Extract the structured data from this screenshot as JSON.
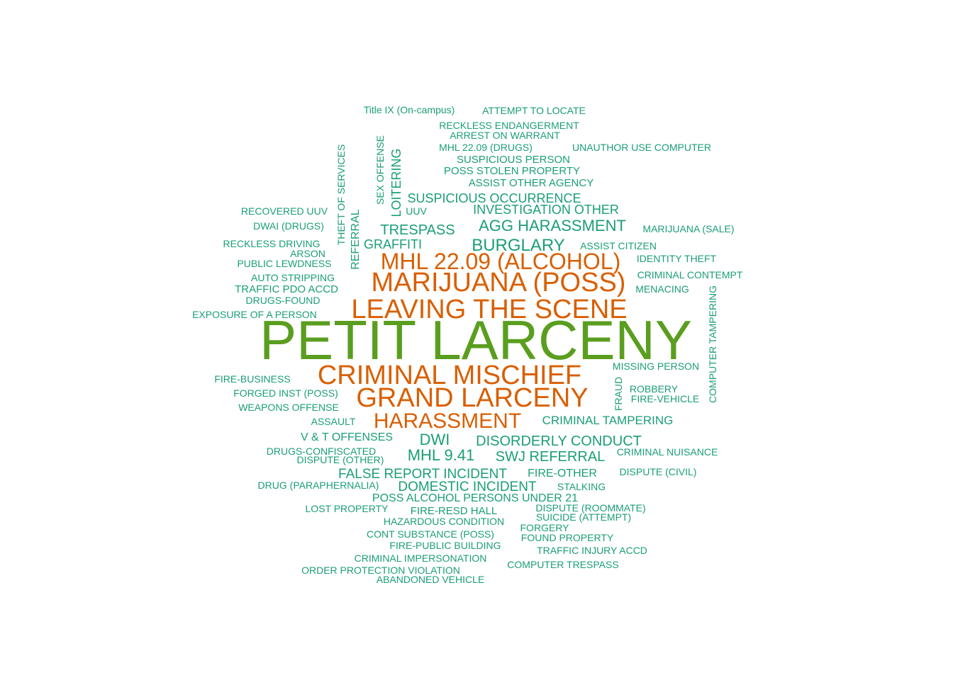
{
  "palette": {
    "green": "#5a9e1f",
    "orange": "#d95f02",
    "teal": "#1b9e77"
  },
  "words": [
    {
      "text": "PETIT LARCENY",
      "color": "green"
    },
    {
      "text": "CRIMINAL MISCHIEF",
      "color": "orange"
    },
    {
      "text": "GRAND LARCENY",
      "color": "orange"
    },
    {
      "text": "LEAVING THE SCENE",
      "color": "orange"
    },
    {
      "text": "MARIJUANA (POSS)",
      "color": "orange"
    },
    {
      "text": "MHL 22.09 (ALCOHOL)",
      "color": "orange"
    },
    {
      "text": "HARASSMENT",
      "color": "orange"
    },
    {
      "text": "BURGLARY",
      "color": "teal"
    },
    {
      "text": "DWI",
      "color": "teal"
    },
    {
      "text": "AGG HARASSMENT",
      "color": "teal"
    },
    {
      "text": "MHL 9.41",
      "color": "teal"
    },
    {
      "text": "DISORDERLY CONDUCT",
      "color": "teal"
    },
    {
      "text": "SWJ REFERRAL",
      "color": "teal"
    },
    {
      "text": "FALSE REPORT INCIDENT",
      "color": "teal"
    },
    {
      "text": "DOMESTIC INCIDENT",
      "color": "teal"
    },
    {
      "text": "TRESPASS",
      "color": "teal"
    },
    {
      "text": "CRIMINAL TAMPERING",
      "color": "teal"
    },
    {
      "text": "INVESTIGATION OTHER",
      "color": "teal"
    },
    {
      "text": "SUSPICIOUS OCCURRENCE",
      "color": "teal"
    },
    {
      "text": "GRAFFITI",
      "color": "teal"
    },
    {
      "text": "POSS ALCOHOL PERSONS UNDER 21",
      "color": "teal"
    },
    {
      "text": "V & T OFFENSES",
      "color": "teal"
    },
    {
      "text": "LOITERING",
      "color": "teal"
    },
    {
      "text": "REFERRAL",
      "color": "teal"
    },
    {
      "text": "FIRE-OTHER",
      "color": "teal"
    },
    {
      "text": "SUSPICIOUS PERSON",
      "color": "teal"
    },
    {
      "text": "POSS STOLEN PROPERTY",
      "color": "teal"
    },
    {
      "text": "ASSIST OTHER AGENCY",
      "color": "teal"
    },
    {
      "text": "TRAFFIC PDO ACCD",
      "color": "teal"
    },
    {
      "text": "FIRE-RESD HALL",
      "color": "teal"
    },
    {
      "text": "Title IX (On-campus)",
      "color": "teal"
    },
    {
      "text": "ATTEMPT TO LOCATE",
      "color": "teal"
    },
    {
      "text": "RECKLESS ENDANGERMENT",
      "color": "teal"
    },
    {
      "text": "ARREST ON WARRANT",
      "color": "teal"
    },
    {
      "text": "MHL 22.09 (DRUGS)",
      "color": "teal"
    },
    {
      "text": "UNAUTHOR USE COMPUTER",
      "color": "teal"
    },
    {
      "text": "THEFT OF SERVICES",
      "color": "teal"
    },
    {
      "text": "SEX OFFENSE",
      "color": "teal"
    },
    {
      "text": "UUV",
      "color": "teal"
    },
    {
      "text": "RECOVERED UUV",
      "color": "teal"
    },
    {
      "text": "DWAI (DRUGS)",
      "color": "teal"
    },
    {
      "text": "MARIJUANA (SALE)",
      "color": "teal"
    },
    {
      "text": "RECKLESS DRIVING",
      "color": "teal"
    },
    {
      "text": "ASSIST CITIZEN",
      "color": "teal"
    },
    {
      "text": "ARSON",
      "color": "teal"
    },
    {
      "text": "PUBLIC LEWDNESS",
      "color": "teal"
    },
    {
      "text": "IDENTITY THEFT",
      "color": "teal"
    },
    {
      "text": "AUTO STRIPPING",
      "color": "teal"
    },
    {
      "text": "CRIMINAL CONTEMPT",
      "color": "teal"
    },
    {
      "text": "MENACING",
      "color": "teal"
    },
    {
      "text": "DRUGS-FOUND",
      "color": "teal"
    },
    {
      "text": "EXPOSURE OF A PERSON",
      "color": "teal"
    },
    {
      "text": "COMPUTER TAMPERING",
      "color": "teal"
    },
    {
      "text": "MISSING PERSON",
      "color": "teal"
    },
    {
      "text": "FIRE-BUSINESS",
      "color": "teal"
    },
    {
      "text": "FRAUD",
      "color": "teal"
    },
    {
      "text": "ROBBERY",
      "color": "teal"
    },
    {
      "text": "FORGED INST (POSS)",
      "color": "teal"
    },
    {
      "text": "FIRE-VEHICLE",
      "color": "teal"
    },
    {
      "text": "WEAPONS OFFENSE",
      "color": "teal"
    },
    {
      "text": "ASSAULT",
      "color": "teal"
    },
    {
      "text": "DRUGS-CONFISCATED",
      "color": "teal"
    },
    {
      "text": "CRIMINAL NUISANCE",
      "color": "teal"
    },
    {
      "text": "DISPUTE (OTHER)",
      "color": "teal"
    },
    {
      "text": "DISPUTE (CIVIL)",
      "color": "teal"
    },
    {
      "text": "DRUG (PARAPHERNALIA)",
      "color": "teal"
    },
    {
      "text": "STALKING",
      "color": "teal"
    },
    {
      "text": "LOST PROPERTY",
      "color": "teal"
    },
    {
      "text": "DISPUTE (ROOMMATE)",
      "color": "teal"
    },
    {
      "text": "SUICIDE (ATTEMPT)",
      "color": "teal"
    },
    {
      "text": "HAZARDOUS CONDITION",
      "color": "teal"
    },
    {
      "text": "FORGERY",
      "color": "teal"
    },
    {
      "text": "CONT SUBSTANCE (POSS)",
      "color": "teal"
    },
    {
      "text": "FOUND PROPERTY",
      "color": "teal"
    },
    {
      "text": "FIRE-PUBLIC BUILDING",
      "color": "teal"
    },
    {
      "text": "TRAFFIC INJURY ACCD",
      "color": "teal"
    },
    {
      "text": "CRIMINAL IMPERSONATION",
      "color": "teal"
    },
    {
      "text": "COMPUTER TRESPASS",
      "color": "teal"
    },
    {
      "text": "ORDER PROTECTION VIOLATION",
      "color": "teal"
    },
    {
      "text": "ABANDONED VEHICLE",
      "color": "teal"
    }
  ]
}
